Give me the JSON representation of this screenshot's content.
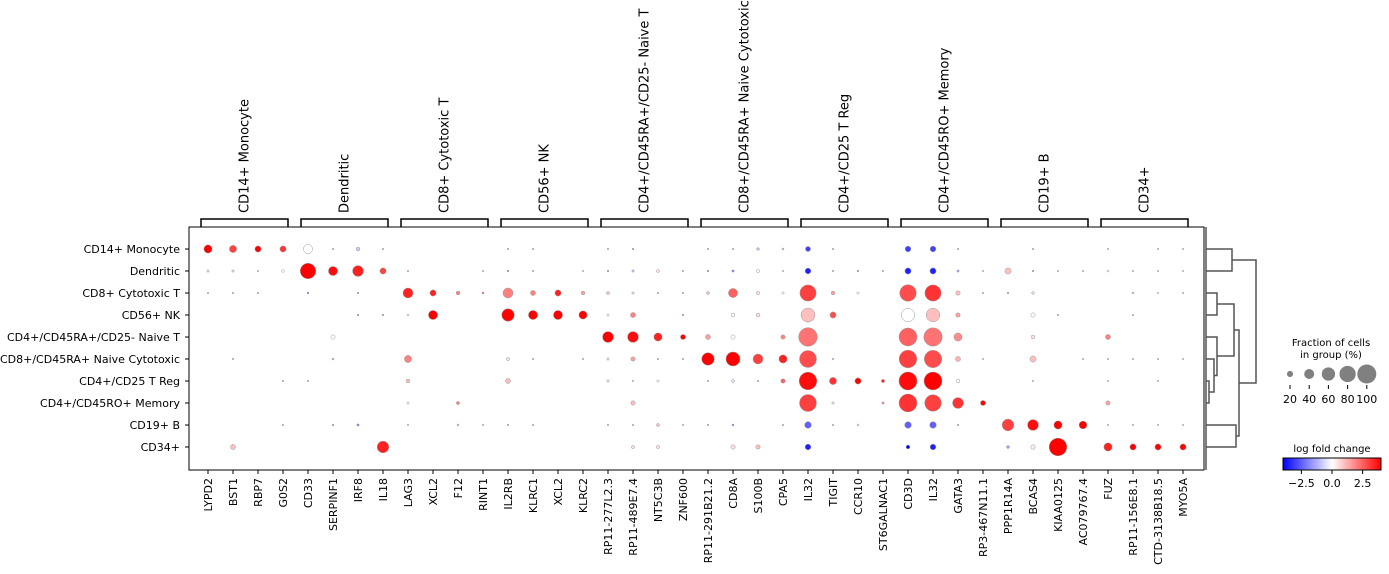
{
  "chart_data": {
    "type": "dotplot",
    "groups": [
      "CD14+ Monocyte",
      "Dendritic",
      "CD8+ Cytotoxic T",
      "CD56+ NK",
      "CD4+/CD45RA+/CD25- Naive T",
      "CD8+/CD45RA+ Naive Cytotoxic",
      "CD4+/CD25 T Reg",
      "CD4+/CD45RO+ Memory",
      "CD19+ B",
      "CD34+"
    ],
    "var_group_labels": [
      "CD14+ Monocyte",
      "Dendritic",
      "CD8+ Cytotoxic T",
      "CD56+ NK",
      "CD4+/CD45RA+/CD25- Naive T",
      "CD8+/CD45RA+ Naive Cytotoxic",
      "CD4+/CD25 T Reg",
      "CD4+/CD45RO+ Memory",
      "CD19+ B",
      "CD34+"
    ],
    "genes": [
      "LYPD2",
      "BST1",
      "RBP7",
      "G0S2",
      "CD33",
      "SERPINF1",
      "IRF8",
      "IL18",
      "LAG3",
      "XCL2",
      "F12",
      "RINT1",
      "IL2RB",
      "KLRC1",
      "XCL2",
      "KLRC2",
      "RP11-277L2.3",
      "RP11-489E7.4",
      "NT5C3B",
      "ZNF600",
      "RP11-291B21.2",
      "CD8A",
      "S100B",
      "CPA5",
      "IL32",
      "TIGIT",
      "CCR10",
      "ST6GALNAC1",
      "CD3D",
      "IL32",
      "GATA3",
      "RP3-467N11.1",
      "PPP1R14A",
      "BCAS4",
      "KIAA0125",
      "AC079767.4",
      "FUZ",
      "RP11-156E8.1",
      "CTD-3138B18.5",
      "MYO5A"
    ],
    "fraction": [
      [
        0.3,
        0.25,
        0.2,
        0.2,
        0.35,
        0.02,
        0.1,
        0.02,
        0,
        0,
        0,
        0,
        0.02,
        0.02,
        0,
        0,
        0.02,
        0.03,
        0,
        0,
        0.02,
        0.02,
        0.06,
        0.04,
        0.15,
        0.02,
        0,
        0,
        0.18,
        0.18,
        0.02,
        0,
        0,
        0.01,
        0,
        0,
        0.02,
        0,
        0.02,
        0.02
      ],
      [
        0.05,
        0.05,
        0.02,
        0.06,
        0.75,
        0.35,
        0.45,
        0.2,
        0.02,
        0,
        0,
        0.01,
        0.03,
        0.02,
        0,
        0.01,
        0.02,
        0.05,
        0.07,
        0.02,
        0.02,
        0.05,
        0.08,
        0.02,
        0.18,
        0.01,
        0.02,
        0.01,
        0.2,
        0.2,
        0.05,
        0.01,
        0.2,
        0.02,
        0.01,
        0.01,
        0.04,
        0.01,
        0.02,
        0.02
      ],
      [
        0.02,
        0.02,
        0.02,
        0,
        0.04,
        0,
        0.02,
        0,
        0.4,
        0.2,
        0.1,
        0.04,
        0.4,
        0.15,
        0.2,
        0.1,
        0.07,
        0.05,
        0.02,
        0.02,
        0.07,
        0.35,
        0.08,
        0.05,
        0.8,
        0.1,
        0.05,
        0,
        0.82,
        0.8,
        0.12,
        0.02,
        0.03,
        0.06,
        0,
        0,
        0,
        0.04,
        0.02,
        0.02
      ],
      [
        0,
        0,
        0,
        0,
        0,
        0,
        0.03,
        0.03,
        0.04,
        0.35,
        0,
        0,
        0.55,
        0.35,
        0.35,
        0.3,
        0.05,
        0.15,
        0,
        0.03,
        0,
        0.1,
        0.1,
        0,
        0.65,
        0.2,
        0,
        0,
        0.6,
        0.62,
        0.12,
        0,
        0,
        0.12,
        0.03,
        0,
        0,
        0.03,
        0,
        0
      ],
      [
        0,
        0,
        0,
        0,
        0,
        0.12,
        0,
        0,
        0,
        0,
        0,
        0,
        0,
        0,
        0,
        0,
        0.45,
        0.45,
        0.3,
        0.15,
        0.15,
        0.12,
        0,
        0.12,
        0.97,
        0,
        0,
        0,
        0.92,
        0.95,
        0.3,
        0,
        0,
        0.1,
        0,
        0,
        0.15,
        0,
        0,
        0
      ],
      [
        0,
        0.03,
        0,
        0,
        0,
        0.04,
        0,
        0,
        0.25,
        0,
        0,
        0,
        0.08,
        0.03,
        0,
        0.03,
        0.05,
        0.12,
        0.02,
        0.02,
        0.55,
        0.65,
        0.4,
        0.3,
        0.85,
        0.02,
        0,
        0,
        0.9,
        0.88,
        0.15,
        0.02,
        0,
        0.2,
        0,
        0.02,
        0.02,
        0.02,
        0.02,
        0.02
      ],
      [
        0,
        0,
        0,
        0.02,
        0.02,
        0,
        0,
        0,
        0.1,
        0,
        0,
        0,
        0.15,
        0,
        0,
        0,
        0.05,
        0.03,
        0.05,
        0,
        0.02,
        0.07,
        0.02,
        0.12,
        0.9,
        0.25,
        0.2,
        0.08,
        0.93,
        0.92,
        0.1,
        0,
        0,
        0.02,
        0,
        0,
        0.02,
        0,
        0.02,
        0
      ],
      [
        0,
        0,
        0,
        0,
        0,
        0,
        0,
        0,
        0.05,
        0,
        0.08,
        0,
        0,
        0,
        0,
        0,
        0,
        0.12,
        0,
        0,
        0,
        0,
        0,
        0,
        0.85,
        0.05,
        0,
        0.05,
        0.92,
        0.82,
        0.45,
        0.15,
        0,
        0,
        0,
        0,
        0.12,
        0,
        0,
        0
      ],
      [
        0,
        0,
        0,
        0.02,
        0,
        0.03,
        0.05,
        0,
        0.02,
        0,
        0.04,
        0.01,
        0.03,
        0.02,
        0,
        0,
        0.02,
        0.02,
        0.07,
        0.01,
        0.03,
        0.04,
        0,
        0.02,
        0.22,
        0.02,
        0.04,
        0,
        0.22,
        0.22,
        0.03,
        0,
        0.5,
        0.45,
        0.3,
        0.28,
        0.02,
        0.01,
        0.01,
        0.02
      ],
      [
        0,
        0.15,
        0,
        0,
        0,
        0,
        0,
        0.5,
        0,
        0,
        0,
        0,
        0,
        0,
        0,
        0,
        0,
        0.08,
        0.08,
        0,
        0,
        0.12,
        0.12,
        0,
        0.18,
        0,
        0,
        0,
        0.1,
        0.18,
        0,
        0,
        0.07,
        0.12,
        0.9,
        0,
        0.3,
        0.2,
        0.2,
        0.2
      ]
    ],
    "log_fold_change": [
      [
        4,
        3,
        4,
        3.2,
        0,
        -1,
        -0.8,
        -1,
        0,
        0,
        0,
        0,
        -1,
        -1,
        0,
        0,
        -1,
        -1.5,
        0,
        0,
        -1,
        -1,
        -1,
        -1,
        -3,
        -1,
        0,
        0,
        -3,
        -3,
        -1,
        0,
        0,
        -1,
        0,
        0,
        -0.5,
        0,
        -0.5,
        -0.5
      ],
      [
        -0.5,
        -0.5,
        -0.5,
        0,
        4,
        3.8,
        3.5,
        3,
        -1,
        0,
        0,
        -0.5,
        -2,
        -1,
        0,
        -0.5,
        -2,
        -1,
        0.5,
        -1,
        -2,
        -2,
        0,
        -0.5,
        -3.5,
        -1,
        -2,
        -1,
        -3.5,
        -3.5,
        -1.5,
        -0.5,
        1,
        -2,
        -0.5,
        -0.5,
        0,
        -0.3,
        -0.3,
        -0.3
      ],
      [
        -1,
        -1,
        -1,
        0,
        -2,
        0,
        -2,
        0,
        3.5,
        3.5,
        2,
        2.5,
        2,
        2,
        3.5,
        1.5,
        1,
        -0.5,
        -1,
        -1,
        1,
        2.5,
        0.5,
        0,
        3,
        1.5,
        0,
        0,
        2.8,
        3.2,
        1,
        -1,
        -1.5,
        -0.5,
        0,
        0,
        0,
        1,
        0,
        -0.5
      ],
      [
        0,
        0,
        0,
        0,
        0,
        0,
        -2,
        -1.5,
        0,
        4,
        0,
        0,
        4,
        4,
        4,
        4,
        0,
        2,
        0,
        2,
        0,
        0,
        0.5,
        0,
        1,
        2.8,
        0,
        0,
        0,
        1,
        1.5,
        0,
        0,
        0,
        -1,
        0,
        0,
        1,
        0,
        0
      ],
      [
        0,
        0,
        0,
        0,
        0,
        0,
        0,
        0,
        0,
        0,
        0,
        0,
        0,
        0,
        0,
        0,
        4,
        3.8,
        3.5,
        4,
        1.5,
        0,
        0,
        2,
        2.2,
        0,
        0,
        0,
        2.5,
        2.2,
        1.8,
        0,
        0,
        0.5,
        0,
        0,
        2,
        0,
        0,
        0
      ],
      [
        0,
        -1,
        0,
        0,
        0,
        -1,
        0,
        0,
        2,
        0,
        0,
        0,
        0.5,
        1,
        0,
        1,
        0.5,
        1.5,
        -1,
        1,
        4,
        4,
        3,
        3.5,
        2.8,
        -1,
        0,
        0,
        3,
        2.8,
        1.2,
        -0.5,
        0,
        1,
        0,
        -0.5,
        -0.5,
        -0.5,
        -0.5,
        -0.5
      ],
      [
        0,
        0,
        0,
        -1,
        -1,
        0,
        0,
        0,
        1,
        0,
        0,
        0,
        1,
        0,
        0,
        0,
        0.5,
        -0.5,
        0,
        0,
        -1,
        -0.5,
        -1,
        2.5,
        3.8,
        3.2,
        4,
        3.5,
        3.8,
        4,
        0,
        0,
        0,
        -0.5,
        0,
        0,
        -0.5,
        0,
        -0.5,
        0
      ],
      [
        0,
        0,
        0,
        0,
        0,
        0,
        0,
        0,
        0,
        0,
        2,
        0,
        0,
        0,
        0,
        0,
        0,
        1,
        0,
        0,
        0,
        0,
        0,
        0,
        3,
        0.5,
        0,
        2,
        3.2,
        3,
        3.2,
        4,
        0,
        0,
        0,
        0,
        1.5,
        0,
        0,
        0
      ],
      [
        0,
        0,
        0,
        -1,
        0,
        -2,
        -2,
        0,
        -0.5,
        0,
        1,
        -0.5,
        -1,
        -1,
        0,
        0,
        -1,
        -1,
        1,
        -0.5,
        -1,
        -2,
        0,
        -1,
        -2.5,
        -1,
        0.5,
        0,
        -2.5,
        -2.5,
        -1,
        0,
        3,
        3.8,
        4,
        4,
        -0.5,
        -0.3,
        -0.3,
        0.5
      ],
      [
        0,
        1,
        0,
        0,
        0,
        0,
        0,
        3.5,
        0,
        0,
        0,
        0,
        0,
        0,
        0,
        0,
        0,
        0.5,
        0.5,
        0,
        0,
        0.5,
        1,
        0,
        -3.5,
        0,
        0,
        0,
        -4,
        -3.5,
        0,
        0,
        -1.5,
        0.3,
        4,
        0,
        3.5,
        4,
        4,
        4
      ]
    ],
    "colormap": "bwr",
    "color_range": [
      -4,
      4
    ],
    "dendrogram": true,
    "size_legend": {
      "title_line1": "Fraction of cells",
      "title_line2": "in group (%)",
      "ticks": [
        "20",
        "40",
        "60",
        "80",
        "100"
      ],
      "values": [
        0.2,
        0.4,
        0.6,
        0.8,
        1.0
      ]
    },
    "colorbar": {
      "title": "log fold change",
      "ticks": [
        "−2.5",
        "0.0",
        "2.5"
      ],
      "tick_values": [
        -2.5,
        0,
        2.5
      ]
    },
    "edge_color": "#999999",
    "line_color": "#555555"
  }
}
